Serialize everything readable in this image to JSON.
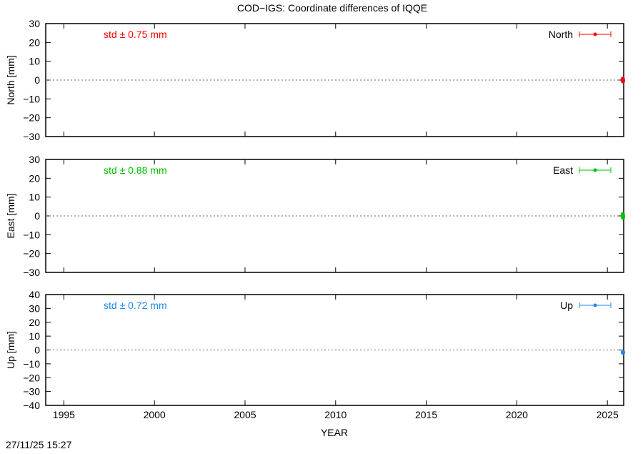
{
  "chart_data": [
    {
      "type": "scatter",
      "title": "COD−IGS: Coordinate differences of IQQE",
      "xlabel": "",
      "ylabel": "North [mm]",
      "xlim": [
        1994,
        2025.9
      ],
      "ylim": [
        -30,
        30
      ],
      "yticks": [
        -30,
        -20,
        -10,
        0,
        10,
        20,
        30
      ],
      "ytick_labels": [
        "−30",
        "−20",
        "−10",
        "0",
        "10",
        "20",
        "30"
      ],
      "legend": "North",
      "legend_placement": "top-right",
      "annotation": "std ± 0.75 mm",
      "color": "#ff0000",
      "zero_line": true,
      "points": [
        [
          2025.85,
          0.6
        ],
        [
          2025.86,
          -0.2
        ],
        [
          2025.87,
          -0.6
        ]
      ]
    },
    {
      "type": "scatter",
      "xlabel": "",
      "ylabel": "East [mm]",
      "xlim": [
        1994,
        2025.9
      ],
      "ylim": [
        -30,
        30
      ],
      "yticks": [
        -30,
        -20,
        -10,
        0,
        10,
        20,
        30
      ],
      "ytick_labels": [
        "−30",
        "−20",
        "−10",
        "0",
        "10",
        "20",
        "30"
      ],
      "legend": "East",
      "legend_placement": "top-right",
      "annotation": "std ± 0.88 mm",
      "color": "#00c000",
      "zero_line": true,
      "points": [
        [
          2025.85,
          0.9
        ],
        [
          2025.86,
          0.0
        ],
        [
          2025.87,
          -0.8
        ]
      ]
    },
    {
      "type": "scatter",
      "xlabel": "YEAR",
      "ylabel": "Up [mm]",
      "xlim": [
        1994,
        2025.9
      ],
      "ylim": [
        -40,
        40
      ],
      "xticks": [
        1995,
        2000,
        2005,
        2010,
        2015,
        2020,
        2025
      ],
      "yticks": [
        -40,
        -30,
        -20,
        -10,
        0,
        10,
        20,
        30,
        40
      ],
      "ytick_labels": [
        "−40",
        "−30",
        "−20",
        "−10",
        "0",
        "10",
        "20",
        "30",
        "40"
      ],
      "legend": "Up",
      "legend_placement": "top-right",
      "annotation": "std ± 0.72 mm",
      "color": "#1e88ee",
      "zero_line": true,
      "points": [
        [
          2025.86,
          -1.4
        ],
        [
          2025.87,
          -2.0
        ]
      ]
    }
  ],
  "timestamp": "27/11/25 15:27"
}
